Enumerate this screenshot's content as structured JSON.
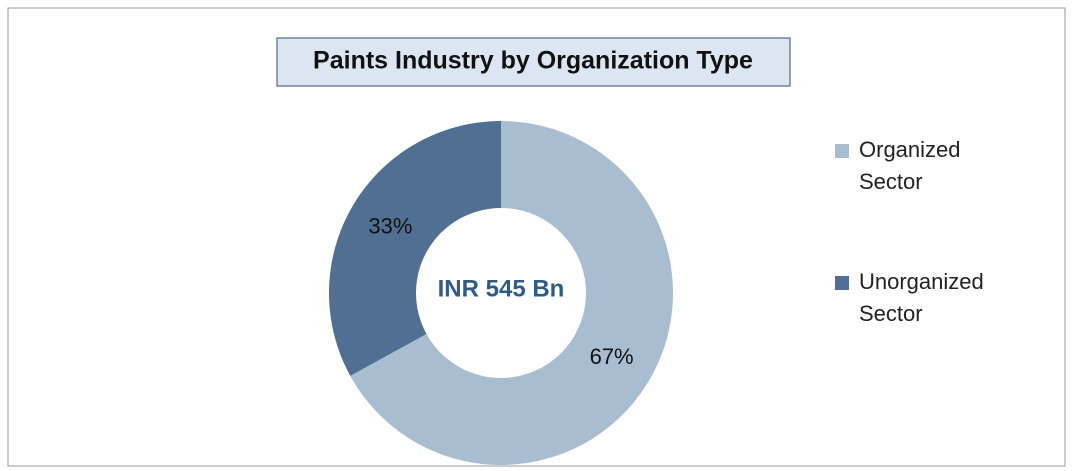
{
  "chart_data": {
    "type": "donut",
    "title": "Paints Industry by Organization Type",
    "center_label": "INR 545 Bn",
    "categories": [
      "Organized Sector",
      "Unorganized Sector"
    ],
    "values": [
      67,
      33
    ],
    "value_labels": [
      "67%",
      "33%"
    ],
    "colors": [
      "#a9bdd0",
      "#506f92"
    ],
    "legend": "right"
  }
}
